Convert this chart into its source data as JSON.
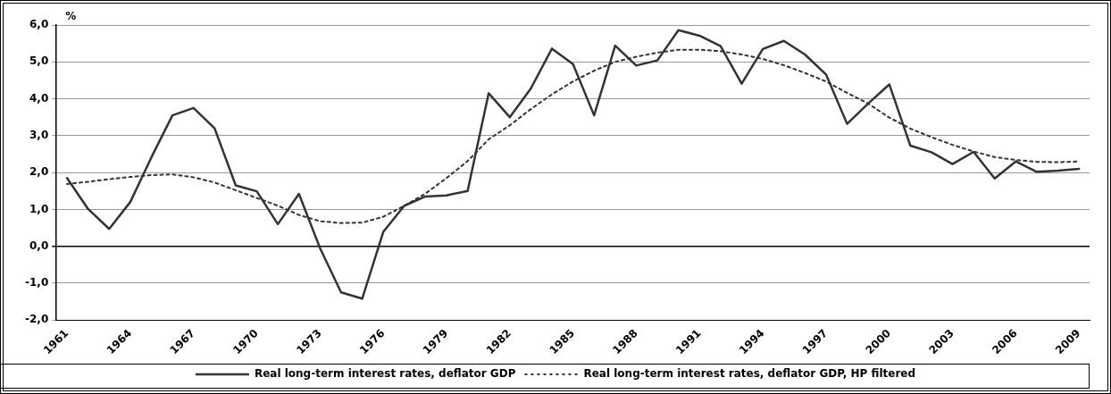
{
  "chart_data": {
    "type": "line",
    "ylabel": "%",
    "categories": [
      "1961",
      null,
      null,
      "1964",
      null,
      null,
      "1967",
      null,
      null,
      "1970",
      null,
      null,
      "1973",
      null,
      null,
      "1976",
      null,
      null,
      "1979",
      null,
      null,
      "1982",
      null,
      null,
      "1985",
      null,
      null,
      "1988",
      null,
      null,
      "1991",
      null,
      null,
      "1994",
      null,
      null,
      "1997",
      null,
      null,
      "2000",
      null,
      null,
      "2003",
      null,
      null,
      "2006",
      null,
      null,
      "2009"
    ],
    "series": [
      {
        "name": "Real long-term interest rates, deflator GDP",
        "color": "#333333",
        "line_style": "solid",
        "values": [
          1.85,
          1.01,
          0.47,
          1.2,
          2.41,
          3.55,
          3.75,
          3.2,
          1.65,
          1.49,
          0.6,
          1.42,
          -0.05,
          -1.25,
          -1.42,
          0.39,
          1.1,
          1.35,
          1.38,
          1.5,
          4.15,
          3.5,
          4.28,
          5.36,
          4.94,
          3.55,
          5.44,
          4.9,
          5.04,
          5.86,
          5.71,
          5.43,
          4.41,
          5.35,
          5.57,
          5.2,
          4.66,
          3.32,
          3.87,
          4.39,
          2.73,
          2.55,
          2.23,
          2.56,
          1.84,
          2.3,
          2.02,
          2.05,
          2.1
        ]
      },
      {
        "name": "Real long-term interest rates, deflator GDP, HP filtered",
        "color": "#333333",
        "line_style": "dashed",
        "values": [
          1.69,
          1.75,
          1.82,
          1.88,
          1.93,
          1.95,
          1.87,
          1.73,
          1.52,
          1.31,
          1.1,
          0.85,
          0.68,
          0.63,
          0.64,
          0.8,
          1.1,
          1.43,
          1.85,
          2.31,
          2.9,
          3.28,
          3.72,
          4.12,
          4.47,
          4.76,
          5.0,
          5.14,
          5.25,
          5.33,
          5.33,
          5.29,
          5.2,
          5.08,
          4.91,
          4.7,
          4.47,
          4.16,
          3.87,
          3.49,
          3.19,
          2.96,
          2.75,
          2.57,
          2.42,
          2.34,
          2.29,
          2.28,
          2.3
        ]
      }
    ],
    "ylim": [
      -2,
      6
    ],
    "yticks": [
      {
        "value": -2,
        "label": "-2,0"
      },
      {
        "value": -1,
        "label": "-1,0"
      },
      {
        "value": 0,
        "label": "0,0"
      },
      {
        "value": 1,
        "label": "1,0"
      },
      {
        "value": 2,
        "label": "2,0"
      },
      {
        "value": 3,
        "label": "3,0"
      },
      {
        "value": 4,
        "label": "4,0"
      },
      {
        "value": 5,
        "label": "5,0"
      },
      {
        "value": 6,
        "label": "6,0"
      }
    ],
    "grid": "y",
    "legend": "bottom",
    "marker": "none"
  }
}
